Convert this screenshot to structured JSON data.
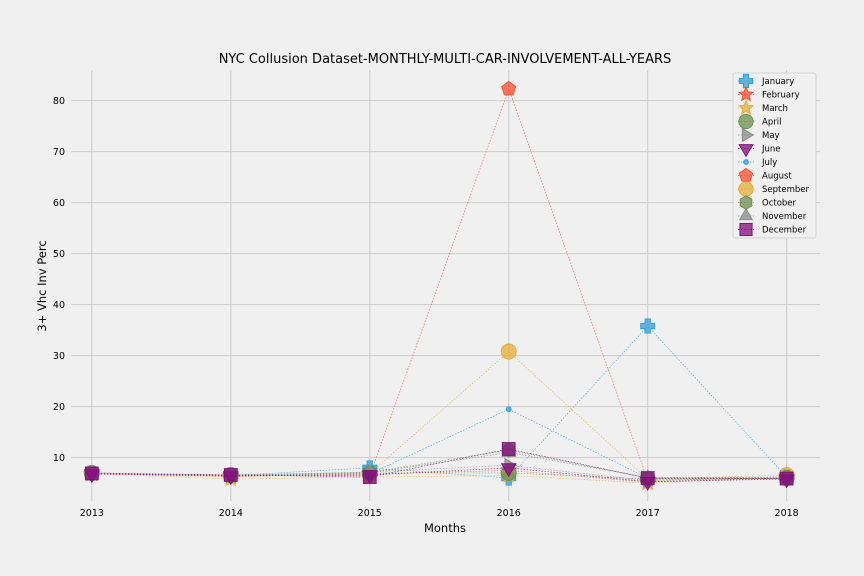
{
  "chart_data": {
    "type": "line",
    "title": "NYC Collusion Dataset-MONTHLY-MULTI-CAR-INVOLVEMENT-ALL-YEARS",
    "xlabel": "Months",
    "ylabel": "3+ Vhc Inv Perc",
    "x": [
      "2013",
      "2014",
      "2015",
      "2016",
      "2017",
      "2018"
    ],
    "xlim": [
      2012.85,
      2018.24
    ],
    "ylim": [
      1.5,
      86
    ],
    "yticks": [
      10,
      20,
      30,
      40,
      50,
      60,
      70,
      80
    ],
    "grid": true,
    "legend_position": "top-right",
    "series": [
      {
        "name": "January",
        "color": "#30a2da",
        "marker": "plus",
        "values": [
          7.0,
          6.5,
          8.0,
          6.0,
          35.8,
          6.2
        ]
      },
      {
        "name": "February",
        "color": "#fc4f30",
        "marker": "star",
        "values": [
          6.8,
          6.3,
          6.8,
          7.5,
          5.2,
          6.0
        ]
      },
      {
        "name": "March",
        "color": "#e5ae38",
        "marker": "star",
        "values": [
          6.9,
          5.8,
          6.2,
          6.5,
          5.0,
          6.3
        ]
      },
      {
        "name": "April",
        "color": "#6d904f",
        "marker": "circle",
        "values": [
          7.0,
          6.6,
          7.0,
          7.0,
          5.8,
          6.0
        ]
      },
      {
        "name": "May",
        "color": "#8b8b8b",
        "marker": "triangle-right",
        "values": [
          7.0,
          6.5,
          7.2,
          8.5,
          5.5,
          6.0
        ]
      },
      {
        "name": "June",
        "color": "#810f7c",
        "marker": "triangle-down",
        "values": [
          6.8,
          6.4,
          6.6,
          8.0,
          5.3,
          5.8
        ]
      },
      {
        "name": "July",
        "color": "#30a2da",
        "marker": "dot",
        "values": [
          6.9,
          6.5,
          6.8,
          19.5,
          6.0,
          6.2
        ]
      },
      {
        "name": "August",
        "color": "#fc4f30",
        "marker": "pentagon",
        "values": [
          7.0,
          6.6,
          6.5,
          82.3,
          5.6,
          6.0
        ]
      },
      {
        "name": "September",
        "color": "#e5ae38",
        "marker": "circle",
        "values": [
          7.0,
          6.5,
          6.9,
          30.8,
          5.8,
          6.6
        ]
      },
      {
        "name": "October",
        "color": "#6d904f",
        "marker": "hexagon",
        "values": [
          6.9,
          6.6,
          7.1,
          11.5,
          6.0,
          5.9
        ]
      },
      {
        "name": "November",
        "color": "#8b8b8b",
        "marker": "triangle-up",
        "values": [
          7.0,
          6.6,
          7.0,
          11.0,
          6.1,
          6.0
        ]
      },
      {
        "name": "December",
        "color": "#810f7c",
        "marker": "square",
        "values": [
          6.9,
          6.6,
          6.2,
          11.7,
          6.0,
          5.9
        ]
      }
    ]
  }
}
